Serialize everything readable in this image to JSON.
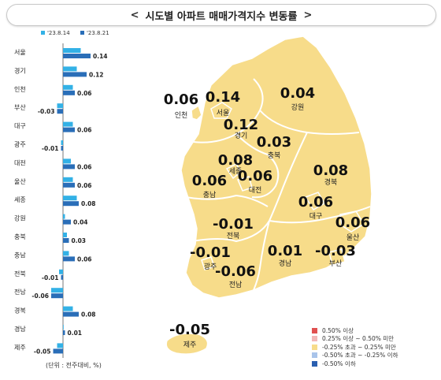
{
  "header": {
    "title": "시도별 아파트 매매가격지수 변동률",
    "left_chevron": "<",
    "right_chevron": ">"
  },
  "chart_data": {
    "type": "bar",
    "orientation": "horizontal",
    "categories": [
      "서울",
      "경기",
      "인천",
      "부산",
      "대구",
      "광주",
      "대전",
      "울산",
      "세종",
      "강원",
      "충북",
      "충남",
      "전북",
      "전남",
      "경북",
      "경남",
      "제주"
    ],
    "series": [
      {
        "name": "'23.8.14",
        "color": "#33b1e6",
        "values": [
          0.09,
          0.07,
          0.05,
          -0.03,
          0.05,
          -0.01,
          0.04,
          0.05,
          0.07,
          0.01,
          0.02,
          0.03,
          -0.02,
          -0.06,
          0.05,
          0.0,
          -0.03
        ]
      },
      {
        "name": "'23.8.21",
        "color": "#2a6eb8",
        "values": [
          0.14,
          0.12,
          0.06,
          -0.03,
          0.06,
          -0.01,
          0.06,
          0.06,
          0.08,
          0.04,
          0.03,
          0.06,
          -0.01,
          -0.06,
          0.08,
          0.01,
          -0.05
        ]
      }
    ],
    "data_labels": [
      "0.14",
      "0.12",
      "0.06",
      "-0.03",
      "0.06",
      "-0.01",
      "0.06",
      "0.06",
      "0.08",
      "0.04",
      "0.03",
      "0.06",
      "-0.01",
      "-0.06",
      "0.08",
      "0.01",
      "-0.05"
    ],
    "note": "(단위 : 전주대비, %)"
  },
  "map": {
    "regions": [
      {
        "name": "인천",
        "value": "0.06"
      },
      {
        "name": "서울",
        "value": "0.14"
      },
      {
        "name": "경기",
        "value": "0.12"
      },
      {
        "name": "강원",
        "value": "0.04"
      },
      {
        "name": "충북",
        "value": "0.03"
      },
      {
        "name": "세종",
        "value": "0.08"
      },
      {
        "name": "대전",
        "value": "0.06"
      },
      {
        "name": "충남",
        "value": "0.06"
      },
      {
        "name": "경북",
        "value": "0.08"
      },
      {
        "name": "대구",
        "value": "0.06"
      },
      {
        "name": "울산",
        "value": "0.06"
      },
      {
        "name": "전북",
        "value": "-0.01"
      },
      {
        "name": "광주",
        "value": "-0.01"
      },
      {
        "name": "전남",
        "value": "-0.06"
      },
      {
        "name": "경남",
        "value": "0.01"
      },
      {
        "name": "부산",
        "value": "-0.03"
      },
      {
        "name": "제주",
        "value": "-0.05"
      }
    ],
    "fill_color": "#f7dc8a",
    "border_color": "#ffffff"
  },
  "legend": [
    {
      "label": "0.50% 이상",
      "color": "#e05050"
    },
    {
      "label": "0.25% 이상 ~ 0.50% 미만",
      "color": "#f2b8b8"
    },
    {
      "label": "-0.25% 초과 ~ 0.25% 미만",
      "color": "#f7dc8a"
    },
    {
      "label": "-0.50% 초과 ~ -0.25% 이하",
      "color": "#a9c4ea"
    },
    {
      "label": "-0.50% 이하",
      "color": "#2a5fb0"
    }
  ]
}
